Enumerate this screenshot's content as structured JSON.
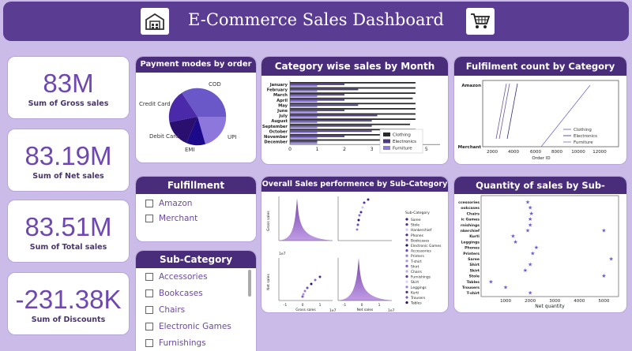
{
  "header": {
    "title": "E-Commerce Sales Dashboard",
    "left_icon": "warehouse-icon",
    "right_icon": "shopping-cart-icon"
  },
  "kpis": [
    {
      "value": "83M",
      "label": "Sum of Gross sales"
    },
    {
      "value": "83.19M",
      "label": "Sum of Net sales"
    },
    {
      "value": "83.51M",
      "label": "Sum of Total sales"
    },
    {
      "value": "-231.38K",
      "label": "Sum of Discounts"
    }
  ],
  "payment": {
    "title": "Payment modes by order ID",
    "slices": [
      {
        "label": "COD",
        "color": "#6a57c8"
      },
      {
        "label": "UPI",
        "color": "#8d77dc"
      },
      {
        "label": "EMI",
        "color": "#1c0a8a"
      },
      {
        "label": "Debit Card",
        "color": "#2a0f6e"
      },
      {
        "label": "Credit Card",
        "color": "#4a2aa8"
      }
    ]
  },
  "fulfillment_slicer": {
    "title": "Fulfillment",
    "items": [
      "Amazon",
      "Merchant"
    ]
  },
  "subcategory_slicer": {
    "title": "Sub-Category",
    "items": [
      "Accessories",
      "Bookcases",
      "Chairs",
      "Electronic Games",
      "Furnishings"
    ]
  },
  "category_month": {
    "title": "Category wise sales by Month",
    "months": [
      "January",
      "February",
      "March",
      "April",
      "May",
      "June",
      "July",
      "August",
      "September",
      "October",
      "November",
      "December"
    ],
    "x_ticks": [
      "0",
      "1",
      "2",
      "3",
      "4",
      "5"
    ],
    "legend": [
      "Clothing",
      "Electronics",
      "Furniture"
    ]
  },
  "fulfilment_count": {
    "title": "Fulfilment count by Category",
    "y_labels": [
      "Amazon",
      "Merchant"
    ],
    "x_ticks": [
      "2000",
      "4000",
      "6000",
      "8000",
      "10000",
      "12000"
    ],
    "xlabel": "Order ID",
    "legend": [
      "Clothing",
      "Electronics",
      "Furniture"
    ]
  },
  "pairplot": {
    "title": "Overall Sales performence by Sub-Category",
    "ylabel_top": "Gross sales",
    "ylabel_bottom": "Net sales",
    "xlabel_left": "Gross sales",
    "xlabel_right": "Net sales",
    "exp": "1e7",
    "ticks": [
      "-1",
      "0",
      "1"
    ],
    "legend_title": "Sub-Category",
    "legend": [
      "Saree",
      "Stole",
      "Hankerchief",
      "Phones",
      "Bookcases",
      "Electronic Games",
      "Accessories",
      "Printers",
      "T-shirt",
      "Shirt",
      "Chairs",
      "Furnishings",
      "Skirt",
      "Leggings",
      "Kurti",
      "Trousers",
      "Tables"
    ]
  },
  "qty_subcat": {
    "title": "Quantity of sales by Sub-category",
    "xlabel": "Net quantity",
    "x_ticks": [
      "1000",
      "2000",
      "3000",
      "4000",
      "5000"
    ],
    "categories": [
      "Accessories",
      "Bookcases",
      "Chairs",
      "Electronic Games",
      "Furnishings",
      "Hankerchief",
      "Kurti",
      "Leggings",
      "Phones",
      "Printers",
      "Saree",
      "Shirt",
      "Skirt",
      "Stole",
      "Tables",
      "Trousers",
      "T-shirt"
    ],
    "y_labels": [
      "ccessories",
      "ookcases",
      "Chairs",
      "ic Games",
      "rnishings",
      "nkerchief",
      "Kurti",
      "Leggings",
      "Phones",
      "Printers",
      "Saree",
      "Shirt",
      "Skirt",
      "Stole",
      "Tables",
      "Trousers",
      "T-shirt"
    ]
  },
  "chart_data": [
    {
      "type": "bar",
      "title": "Category wise sales by Month",
      "categories": [
        "January",
        "February",
        "March",
        "April",
        "May",
        "June",
        "July",
        "August",
        "September",
        "October",
        "November",
        "December"
      ],
      "series": [
        {
          "name": "Clothing",
          "values": [
            4.6,
            4.6,
            4.6,
            4.5,
            4.6,
            4.6,
            4.6,
            4.6,
            4.4,
            4.6,
            4.6,
            4.6
          ]
        },
        {
          "name": "Electronics",
          "values": [
            2.0,
            2.5,
            2.0,
            2.0,
            2.5,
            2.0,
            3.2,
            3.0,
            3.0,
            3.0,
            2.0,
            1.0
          ]
        },
        {
          "name": "Furniture",
          "values": [
            1.0,
            1.0,
            1.0,
            1.0,
            1.0,
            1.0,
            1.0,
            1.0,
            1.0,
            1.0,
            1.0,
            1.0
          ]
        }
      ],
      "xlim": [
        0,
        5.5
      ]
    },
    {
      "type": "scatter",
      "title": "Quantity of sales by Sub-category",
      "x": [
        1900,
        2000,
        2050,
        2000,
        2000,
        1900,
        5000,
        1300,
        1400,
        2250,
        2100,
        5300,
        2000,
        1800,
        5000,
        400,
        1000,
        2000
      ],
      "xlim": [
        0,
        5600
      ]
    }
  ]
}
